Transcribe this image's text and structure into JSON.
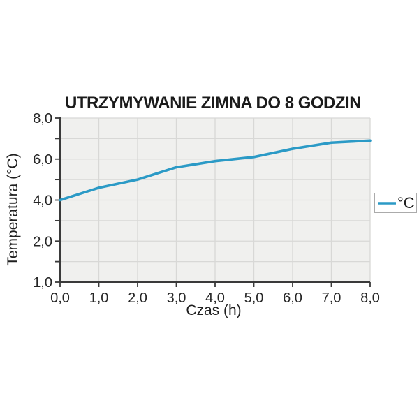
{
  "chart_data": {
    "type": "line",
    "title": "UTRZYMYWANIE ZIMNA DO 8 GODZIN",
    "xlabel": "Czas (h)",
    "ylabel": "Temperatura (°C)",
    "x": [
      0,
      1,
      2,
      3,
      4,
      5,
      6,
      7,
      8
    ],
    "xlim": [
      0,
      8
    ],
    "series": [
      {
        "name": "°C",
        "color": "#2B9AC6",
        "values": [
          4.0,
          4.6,
          5.0,
          5.6,
          5.9,
          6.1,
          6.5,
          6.8,
          6.9
        ]
      }
    ],
    "x_tick_labels": [
      "0,0",
      "1,0",
      "2,0",
      "3,0",
      "4,0",
      "5,0",
      "6,0",
      "7,0",
      "8,0"
    ],
    "y_tick_values": [
      8,
      6,
      4,
      2,
      1
    ],
    "y_tick_labels": [
      "8,0",
      "6,0",
      "4,0",
      "2,0",
      "1,0"
    ],
    "y_gridline_values": [
      8,
      7,
      6,
      5,
      4,
      3,
      2,
      1.5,
      1
    ],
    "grid": true,
    "legend": {
      "position": "right",
      "entries": [
        "°C"
      ]
    },
    "colors": {
      "line": "#2B9AC6",
      "plot_background": "#F0F0EE",
      "gridline": "#D8D8D6",
      "axis": "#3A3A3A",
      "text": "#1F1F1F",
      "legend_border": "#ABABAB",
      "page_background": "#FFFFFF"
    }
  }
}
